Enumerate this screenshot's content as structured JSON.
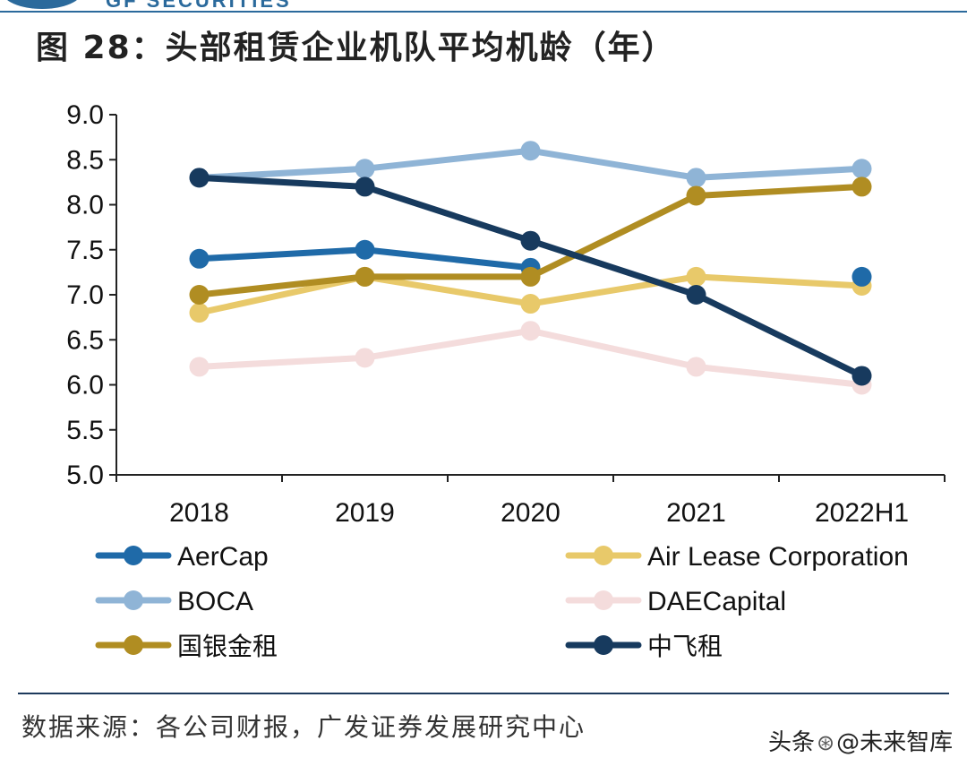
{
  "header": {
    "brand_text": "GF SECURITIES",
    "title": "图 28：头部租赁企业机队平均机龄（年）"
  },
  "chart_data": {
    "type": "line",
    "title": "图 28：头部租赁企业机队平均机龄（年）",
    "xlabel": "",
    "ylabel": "",
    "categories": [
      "2018",
      "2019",
      "2020",
      "2021",
      "2022H1"
    ],
    "ylim": [
      5.0,
      9.0
    ],
    "yticks": [
      "5.0",
      "5.5",
      "6.0",
      "6.5",
      "7.0",
      "7.5",
      "8.0",
      "8.5",
      "9.0"
    ],
    "legend_position": "bottom",
    "series": [
      {
        "name": "DAECapital",
        "color": "#f4dcdc",
        "values": [
          6.2,
          6.3,
          6.6,
          6.2,
          6.0
        ]
      },
      {
        "name": "BOCA",
        "color": "#8fb4d6",
        "values": [
          8.3,
          8.4,
          8.6,
          8.3,
          8.4
        ]
      },
      {
        "name": "Air  Lease Corporation",
        "color": "#e8c96a",
        "values": [
          6.8,
          7.2,
          6.9,
          7.2,
          7.1
        ]
      },
      {
        "name": "AerCap",
        "color": "#1f6aa8",
        "values": [
          7.4,
          7.5,
          7.3,
          null,
          7.2
        ]
      },
      {
        "name": "国银金租",
        "color": "#b08d22",
        "values": [
          7.0,
          7.2,
          7.2,
          8.1,
          8.2
        ]
      },
      {
        "name": "中飞租",
        "color": "#173a5e",
        "values": [
          8.3,
          8.2,
          7.6,
          7.0,
          6.1
        ]
      }
    ],
    "legend_order": [
      "AerCap",
      "Air  Lease Corporation",
      "BOCA",
      "DAECapital",
      "国银金租",
      "中飞租"
    ]
  },
  "footer": {
    "source": "数据来源：各公司财报，广发证券发展研究中心",
    "watermark_prefix": "头条",
    "watermark_handle": "@未来智库",
    "watermark_icon": "wechat-icon"
  }
}
